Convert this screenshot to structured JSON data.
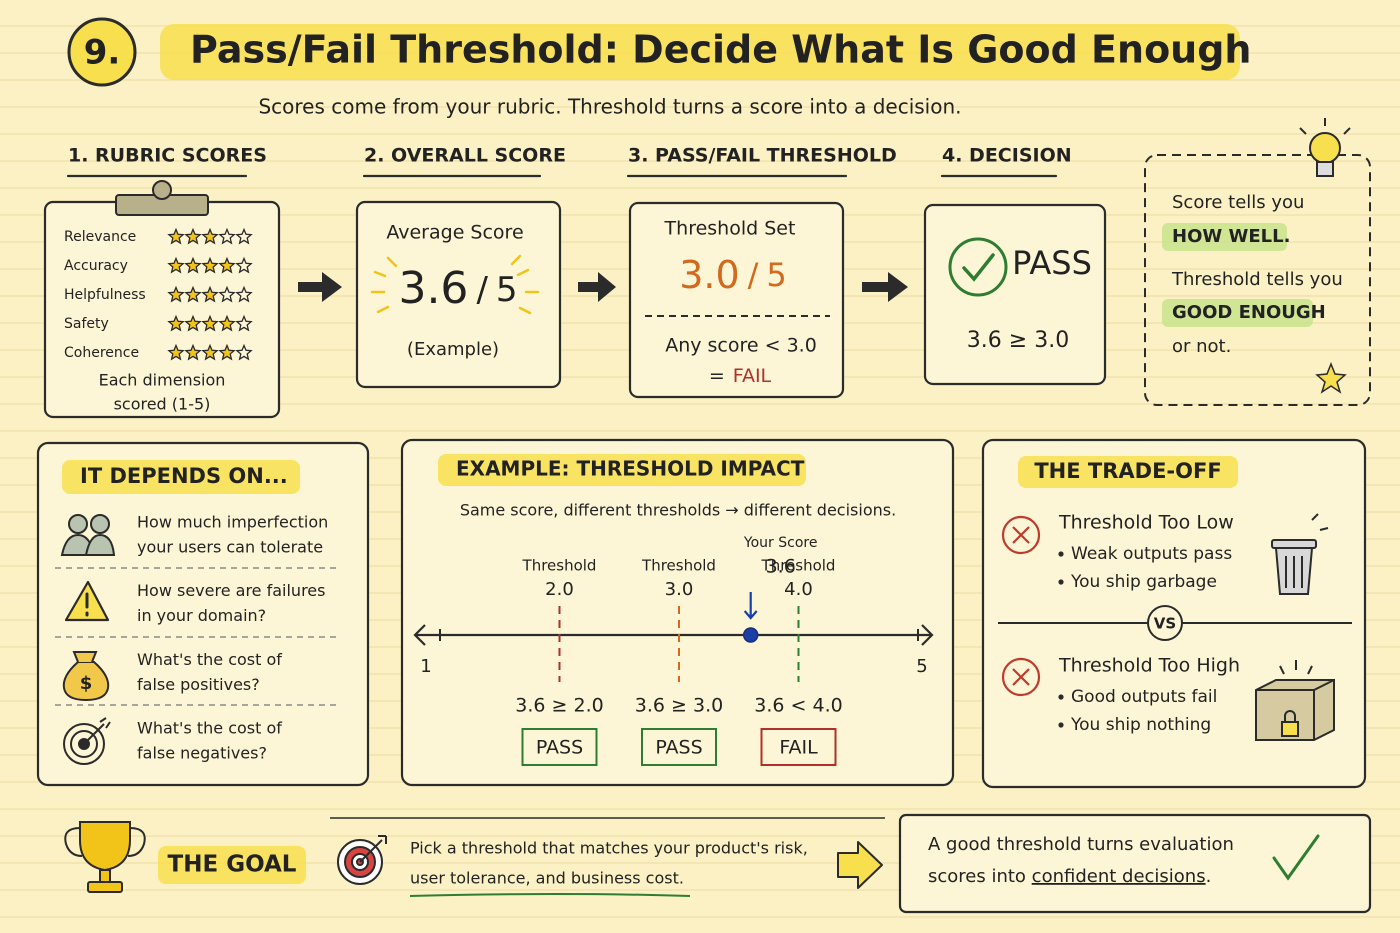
{
  "header": {
    "number": "9.",
    "title": "Pass/Fail Threshold: Decide What Is Good Enough",
    "subtitle": "Scores come from your rubric. Threshold turns a score into a decision."
  },
  "steps": [
    "1. RUBRIC SCORES",
    "2. OVERALL SCORE",
    "3. PASS/FAIL THRESHOLD",
    "4. DECISION"
  ],
  "rubric": {
    "dimensions": [
      {
        "name": "Relevance",
        "stars": 3
      },
      {
        "name": "Accuracy",
        "stars": 4
      },
      {
        "name": "Helpfulness",
        "stars": 3
      },
      {
        "name": "Safety",
        "stars": 4
      },
      {
        "name": "Coherence",
        "stars": 4
      }
    ],
    "note": [
      "Each dimension",
      "scored (1-5)"
    ]
  },
  "overall": {
    "label": "Average Score",
    "score": 3.6,
    "slash": "/",
    "max": 5,
    "note": "(Example)"
  },
  "threshold": {
    "label": "Threshold Set",
    "score": "3.0",
    "slash": "/",
    "max": 5,
    "rule": "Any score < 3.0",
    "eq": "=",
    "result": "FAIL"
  },
  "decision": {
    "result": "PASS",
    "compare": "3.6 ≥ 3.0"
  },
  "note": {
    "lines": [
      {
        "text": "Score tells you",
        "highlight": false
      },
      {
        "text": "HOW WELL.",
        "highlight": true
      },
      {
        "text": "Threshold tells you",
        "highlight": false
      },
      {
        "text": "GOOD ENOUGH",
        "highlight": true
      },
      {
        "text": "or not.",
        "highlight": false
      }
    ]
  },
  "depends": {
    "title": "IT DEPENDS ON...",
    "items": [
      [
        "How much imperfection",
        "your users can tolerate"
      ],
      [
        "How severe are failures",
        "in your domain?"
      ],
      [
        "What's the cost of",
        "false positives?"
      ],
      [
        "What's the cost of",
        "false negatives?"
      ]
    ]
  },
  "example": {
    "title": "EXAMPLE: THRESHOLD IMPACT",
    "caption": "Same score, different thresholds → different decisions.",
    "axis": {
      "min": 1,
      "max": 5
    },
    "thresholds": [
      {
        "label": "Threshold",
        "value": {
          "value": 2,
          "label": "2.0"
        },
        "color": "#b0302a",
        "compare": "3.6 ≥ 2.0",
        "result": "PASS",
        "result_color": "#2e7d32"
      },
      {
        "label": "Threshold",
        "value": {
          "value": 3,
          "label": "3.0"
        },
        "color": "#d2691e",
        "compare": "3.6 ≥ 3.0",
        "result": "PASS",
        "result_color": "#2e7d32"
      },
      {
        "label": "Threshold",
        "value": {
          "value": 4,
          "label": "4.0"
        },
        "color": "#2e7d32",
        "compare": "3.6 < 4.0",
        "result": "FAIL",
        "result_color": "#b0302a"
      }
    ],
    "your_score": {
      "label": "Your Score",
      "value": 3.6,
      "color": "#1a3fa8"
    }
  },
  "tradeoff": {
    "title": "THE TRADE-OFF",
    "low": {
      "title": "Threshold Too Low",
      "bullets": [
        "Weak outputs pass",
        "You ship garbage"
      ]
    },
    "vs": "VS",
    "high": {
      "title": "Threshold Too High",
      "bullets": [
        "Good outputs fail",
        "You ship nothing"
      ]
    }
  },
  "goal": {
    "title": "THE GOAL",
    "text": [
      "Pick a threshold that matches your product's risk,",
      "user tolerance, and business cost."
    ],
    "conclusion": [
      "A good threshold turns evaluation",
      "scores into ",
      "confident decisions",
      "."
    ]
  }
}
